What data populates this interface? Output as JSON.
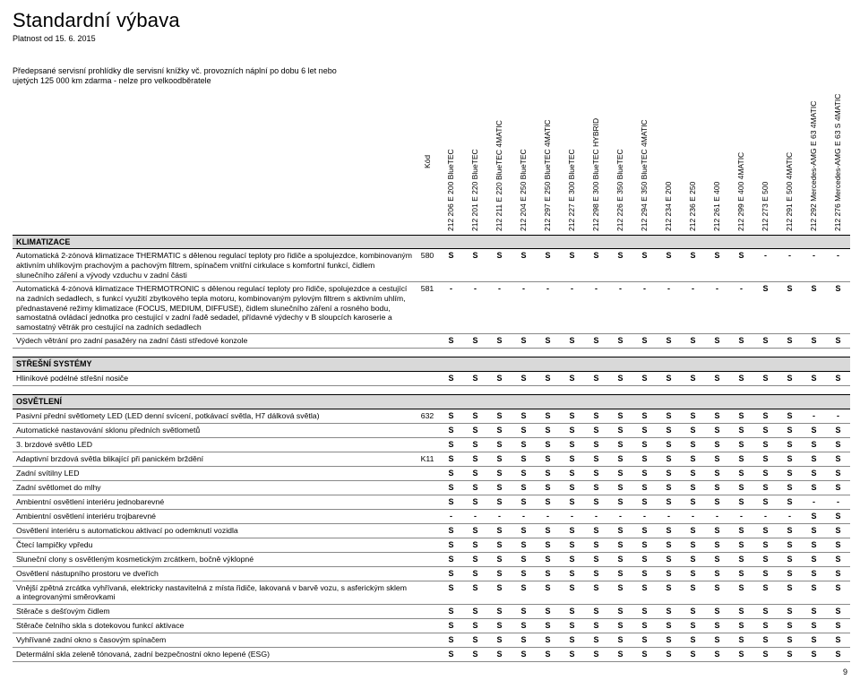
{
  "title": "Standardní výbava",
  "subtitle": "Platnost od 15. 6. 2015",
  "intro": "Předepsané servisní prohlídky dle servisní knížky vč. provozních náplní po dobu 6 let nebo ujetých 125 000 km zdarma - nelze pro velkoodběratele",
  "code_label": "Kód",
  "page_number": "9",
  "variants": [
    "212 206  E 200 BlueTEC",
    "212 201  E 220 BlueTEC",
    "212 211  E 220 BlueTEC 4MATIC",
    "212 204  E 250 BlueTEC",
    "212 297  E 250 BlueTEC 4MATIC",
    "212 227  E 300 BlueTEC",
    "212 298  E 300 BlueTEC HYBRID",
    "212 226  E 350 BlueTEC",
    "212 294  E 350 BlueTEC 4MATIC",
    "212 234  E 200",
    "212 236  E 250",
    "212 261  E 400",
    "212 299  E 400 4MATIC",
    "212 273  E 500",
    "212 291  E 500 4MATIC",
    "212 292  Mercedes-AMG E 63 4MATIC",
    "212 276  Mercedes-AMG E 63 S 4MATIC"
  ],
  "sections": [
    {
      "name": "KLIMATIZACE",
      "rows": [
        {
          "desc": "Automatická 2-zónová klimatizace THERMATIC s dělenou regulací teploty pro řidiče a spolujezdce, kombinovaným aktivním uhlíkovým prachovým a pachovým filtrem, spínačem vnitřní cirkulace s komfortní funkcí, čidlem slunečního záření a vývody vzduchu v zadní části",
          "code": "580",
          "vals": [
            "S",
            "S",
            "S",
            "S",
            "S",
            "S",
            "S",
            "S",
            "S",
            "S",
            "S",
            "S",
            "S",
            "-",
            "-",
            "-",
            "-"
          ]
        },
        {
          "desc": "Automatická 4-zónová klimatizace THERMOTRONIC s dělenou regulací teploty pro řidiče, spolujezdce a cestující na zadních sedadlech, s funkcí využití zbytkového tepla motoru, kombinovaným pylovým filtrem s aktivním uhlím, přednastavené režimy klimatizace (FOCUS, MEDIUM, DIFFUSE), čidlem slunečního záření a rosného bodu, samostatná ovládací jednotka pro cestující v zadní řadě sedadel, přídavné výdechy v B sloupcích karoserie a samostatný větrák pro cestující na zadních sedadlech",
          "code": "581",
          "vals": [
            "-",
            "-",
            "-",
            "-",
            "-",
            "-",
            "-",
            "-",
            "-",
            "-",
            "-",
            "-",
            "-",
            "S",
            "S",
            "S",
            "S"
          ]
        },
        {
          "desc": "Výdech větrání pro zadní pasažéry na zadní části středové konzole",
          "code": "",
          "vals": [
            "S",
            "S",
            "S",
            "S",
            "S",
            "S",
            "S",
            "S",
            "S",
            "S",
            "S",
            "S",
            "S",
            "S",
            "S",
            "S",
            "S"
          ]
        }
      ]
    },
    {
      "name": "STŘEŠNÍ SYSTÉMY",
      "rows": [
        {
          "desc": "Hliníkové podélné střešní nosiče",
          "code": "",
          "vals": [
            "S",
            "S",
            "S",
            "S",
            "S",
            "S",
            "S",
            "S",
            "S",
            "S",
            "S",
            "S",
            "S",
            "S",
            "S",
            "S",
            "S"
          ]
        }
      ]
    },
    {
      "name": "OSVĚTLENÍ",
      "rows": [
        {
          "desc": "Pasivní přední světlomety LED (LED denní svícení, potkávací světla, H7 dálková světla)",
          "code": "632",
          "vals": [
            "S",
            "S",
            "S",
            "S",
            "S",
            "S",
            "S",
            "S",
            "S",
            "S",
            "S",
            "S",
            "S",
            "S",
            "S",
            "-",
            "-"
          ]
        },
        {
          "desc": "Automatické nastavování sklonu předních světlometů",
          "code": "",
          "vals": [
            "S",
            "S",
            "S",
            "S",
            "S",
            "S",
            "S",
            "S",
            "S",
            "S",
            "S",
            "S",
            "S",
            "S",
            "S",
            "S",
            "S"
          ]
        },
        {
          "desc": "3. brzdové světlo LED",
          "code": "",
          "vals": [
            "S",
            "S",
            "S",
            "S",
            "S",
            "S",
            "S",
            "S",
            "S",
            "S",
            "S",
            "S",
            "S",
            "S",
            "S",
            "S",
            "S"
          ]
        },
        {
          "desc": "Adaptivní brzdová světla blikající při panickém brždění",
          "code": "K11",
          "vals": [
            "S",
            "S",
            "S",
            "S",
            "S",
            "S",
            "S",
            "S",
            "S",
            "S",
            "S",
            "S",
            "S",
            "S",
            "S",
            "S",
            "S"
          ]
        },
        {
          "desc": "Zadní svítilny LED",
          "code": "",
          "vals": [
            "S",
            "S",
            "S",
            "S",
            "S",
            "S",
            "S",
            "S",
            "S",
            "S",
            "S",
            "S",
            "S",
            "S",
            "S",
            "S",
            "S"
          ]
        },
        {
          "desc": "Zadní světlomet do mlhy",
          "code": "",
          "vals": [
            "S",
            "S",
            "S",
            "S",
            "S",
            "S",
            "S",
            "S",
            "S",
            "S",
            "S",
            "S",
            "S",
            "S",
            "S",
            "S",
            "S"
          ]
        },
        {
          "desc": "Ambientní osvětlení interiéru jednobarevné",
          "code": "",
          "vals": [
            "S",
            "S",
            "S",
            "S",
            "S",
            "S",
            "S",
            "S",
            "S",
            "S",
            "S",
            "S",
            "S",
            "S",
            "S",
            "-",
            "-"
          ]
        },
        {
          "desc": "Ambientní osvětlení interiéru trojbarevné",
          "code": "",
          "vals": [
            "-",
            "-",
            "-",
            "-",
            "-",
            "-",
            "-",
            "-",
            "-",
            "-",
            "-",
            "-",
            "-",
            "-",
            "-",
            "S",
            "S"
          ]
        },
        {
          "desc": "Osvětlení interiéru s automatickou aktivací po odemknutí vozidla",
          "code": "",
          "vals": [
            "S",
            "S",
            "S",
            "S",
            "S",
            "S",
            "S",
            "S",
            "S",
            "S",
            "S",
            "S",
            "S",
            "S",
            "S",
            "S",
            "S"
          ]
        },
        {
          "desc": "Čtecí lampičky vpředu",
          "code": "",
          "vals": [
            "S",
            "S",
            "S",
            "S",
            "S",
            "S",
            "S",
            "S",
            "S",
            "S",
            "S",
            "S",
            "S",
            "S",
            "S",
            "S",
            "S"
          ]
        },
        {
          "desc": "Sluneční clony s osvětleným kosmetickým zrcátkem, bočně výklopné",
          "code": "",
          "vals": [
            "S",
            "S",
            "S",
            "S",
            "S",
            "S",
            "S",
            "S",
            "S",
            "S",
            "S",
            "S",
            "S",
            "S",
            "S",
            "S",
            "S"
          ]
        },
        {
          "desc": "Osvětlení nástupního prostoru ve dveřích",
          "code": "",
          "vals": [
            "S",
            "S",
            "S",
            "S",
            "S",
            "S",
            "S",
            "S",
            "S",
            "S",
            "S",
            "S",
            "S",
            "S",
            "S",
            "S",
            "S"
          ]
        },
        {
          "desc": "Vnější zpětná zrcátka vyhřívaná, elektricky nastavitelná z místa řidiče, lakovaná v barvě vozu, s asferickým sklem a integrovanými směrovkami",
          "code": "",
          "vals": [
            "S",
            "S",
            "S",
            "S",
            "S",
            "S",
            "S",
            "S",
            "S",
            "S",
            "S",
            "S",
            "S",
            "S",
            "S",
            "S",
            "S"
          ]
        },
        {
          "desc": "Stěrače s dešťovým čidlem",
          "code": "",
          "vals": [
            "S",
            "S",
            "S",
            "S",
            "S",
            "S",
            "S",
            "S",
            "S",
            "S",
            "S",
            "S",
            "S",
            "S",
            "S",
            "S",
            "S"
          ]
        },
        {
          "desc": "Stěrače čelního skla s dotekovou funkcí aktivace",
          "code": "",
          "vals": [
            "S",
            "S",
            "S",
            "S",
            "S",
            "S",
            "S",
            "S",
            "S",
            "S",
            "S",
            "S",
            "S",
            "S",
            "S",
            "S",
            "S"
          ]
        },
        {
          "desc": "Vyhřívané zadní okno s časovým spínačem",
          "code": "",
          "vals": [
            "S",
            "S",
            "S",
            "S",
            "S",
            "S",
            "S",
            "S",
            "S",
            "S",
            "S",
            "S",
            "S",
            "S",
            "S",
            "S",
            "S"
          ]
        },
        {
          "desc": "Determální skla zeleně tónovaná, zadní bezpečnostní okno lepené (ESG)",
          "code": "",
          "vals": [
            "S",
            "S",
            "S",
            "S",
            "S",
            "S",
            "S",
            "S",
            "S",
            "S",
            "S",
            "S",
            "S",
            "S",
            "S",
            "S",
            "S"
          ]
        }
      ]
    }
  ]
}
